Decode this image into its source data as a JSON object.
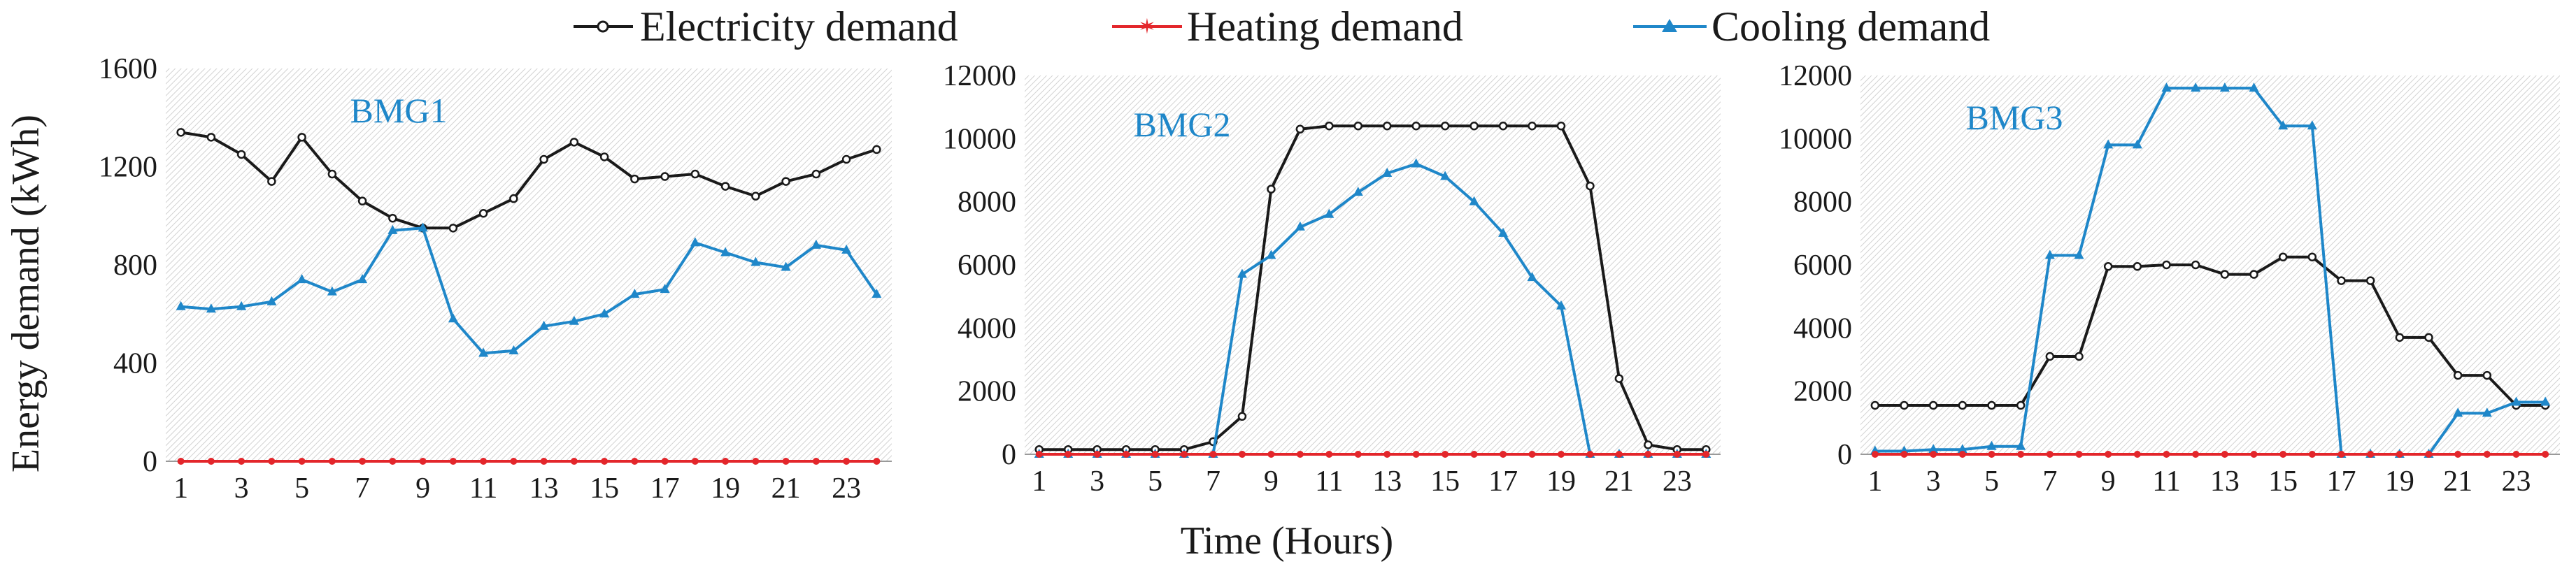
{
  "legend": [
    {
      "label": "Electricity demand",
      "color": "#1a1a1a",
      "marker": "circle"
    },
    {
      "label": "Heating demand",
      "color": "#e3262b",
      "marker": "star"
    },
    {
      "label": "Cooling demand",
      "color": "#1f87c9",
      "marker": "triangle"
    }
  ],
  "shared": {
    "ylabel": "Energy demand (kWh)",
    "xlabel": "Time (Hours)"
  },
  "chart_data": [
    {
      "type": "line",
      "title": "BMG1",
      "x": [
        1,
        2,
        3,
        4,
        5,
        6,
        7,
        8,
        9,
        10,
        11,
        12,
        13,
        14,
        15,
        16,
        17,
        18,
        19,
        20,
        21,
        22,
        23,
        24
      ],
      "xticks": [
        "1",
        "3",
        "5",
        "7",
        "9",
        "11",
        "13",
        "15",
        "17",
        "19",
        "21",
        "23"
      ],
      "ylim": [
        0,
        1600
      ],
      "yticks": [
        "0",
        "400",
        "800",
        "1200",
        "1600"
      ],
      "series": [
        {
          "name": "Electricity demand",
          "values": [
            1340,
            1320,
            1250,
            1140,
            1320,
            1170,
            1060,
            990,
            950,
            950,
            1010,
            1070,
            1230,
            1300,
            1240,
            1150,
            1160,
            1170,
            1120,
            1080,
            1140,
            1170,
            1230,
            1270
          ]
        },
        {
          "name": "Heating demand",
          "values": [
            0,
            0,
            0,
            0,
            0,
            0,
            0,
            0,
            0,
            0,
            0,
            0,
            0,
            0,
            0,
            0,
            0,
            0,
            0,
            0,
            0,
            0,
            0,
            0
          ]
        },
        {
          "name": "Cooling demand",
          "values": [
            630,
            620,
            630,
            650,
            740,
            690,
            740,
            940,
            950,
            580,
            440,
            450,
            550,
            570,
            600,
            680,
            700,
            890,
            850,
            810,
            790,
            880,
            860,
            680
          ]
        }
      ]
    },
    {
      "type": "line",
      "title": "BMG2",
      "x": [
        1,
        2,
        3,
        4,
        5,
        6,
        7,
        8,
        9,
        10,
        11,
        12,
        13,
        14,
        15,
        16,
        17,
        18,
        19,
        20,
        21,
        22,
        23,
        24
      ],
      "xticks": [
        "1",
        "3",
        "5",
        "7",
        "9",
        "11",
        "13",
        "15",
        "17",
        "19",
        "21",
        "23"
      ],
      "ylim": [
        0,
        12000
      ],
      "yticks": [
        "0",
        "2000",
        "4000",
        "6000",
        "8000",
        "10000",
        "12000"
      ],
      "series": [
        {
          "name": "Electricity demand",
          "values": [
            150,
            150,
            150,
            150,
            150,
            150,
            400,
            1200,
            8400,
            10300,
            10400,
            10400,
            10400,
            10400,
            10400,
            10400,
            10400,
            10400,
            10400,
            8500,
            2400,
            300,
            150,
            150
          ]
        },
        {
          "name": "Heating demand",
          "values": [
            0,
            0,
            0,
            0,
            0,
            0,
            0,
            0,
            0,
            0,
            0,
            0,
            0,
            0,
            0,
            0,
            0,
            0,
            0,
            0,
            0,
            0,
            0,
            0
          ]
        },
        {
          "name": "Cooling demand",
          "values": [
            0,
            0,
            0,
            0,
            0,
            0,
            0,
            5700,
            6300,
            7200,
            7600,
            8300,
            8900,
            9200,
            8800,
            8000,
            7000,
            5600,
            4700,
            0,
            0,
            0,
            0,
            0
          ]
        }
      ]
    },
    {
      "type": "line",
      "title": "BMG3",
      "x": [
        1,
        2,
        3,
        4,
        5,
        6,
        7,
        8,
        9,
        10,
        11,
        12,
        13,
        14,
        15,
        16,
        17,
        18,
        19,
        20,
        21,
        22,
        23,
        24
      ],
      "xticks": [
        "1",
        "3",
        "5",
        "7",
        "9",
        "11",
        "13",
        "15",
        "17",
        "19",
        "21",
        "23"
      ],
      "ylim": [
        0,
        12000
      ],
      "yticks": [
        "0",
        "2000",
        "4000",
        "6000",
        "8000",
        "10000",
        "12000"
      ],
      "series": [
        {
          "name": "Electricity demand",
          "values": [
            1550,
            1550,
            1550,
            1550,
            1550,
            1550,
            3100,
            3100,
            5950,
            5950,
            6000,
            6000,
            5700,
            5700,
            6250,
            6250,
            5500,
            5500,
            3700,
            3700,
            2500,
            2500,
            1550,
            1550
          ]
        },
        {
          "name": "Heating demand",
          "values": [
            0,
            0,
            0,
            0,
            0,
            0,
            0,
            0,
            0,
            0,
            0,
            0,
            0,
            0,
            0,
            0,
            0,
            0,
            0,
            0,
            0,
            0,
            0,
            0
          ]
        },
        {
          "name": "Cooling demand",
          "values": [
            100,
            100,
            150,
            150,
            250,
            250,
            6300,
            6300,
            9800,
            9800,
            11600,
            11600,
            11600,
            11600,
            10400,
            10400,
            0,
            0,
            0,
            0,
            1300,
            1300,
            1650,
            1650
          ]
        }
      ]
    }
  ]
}
